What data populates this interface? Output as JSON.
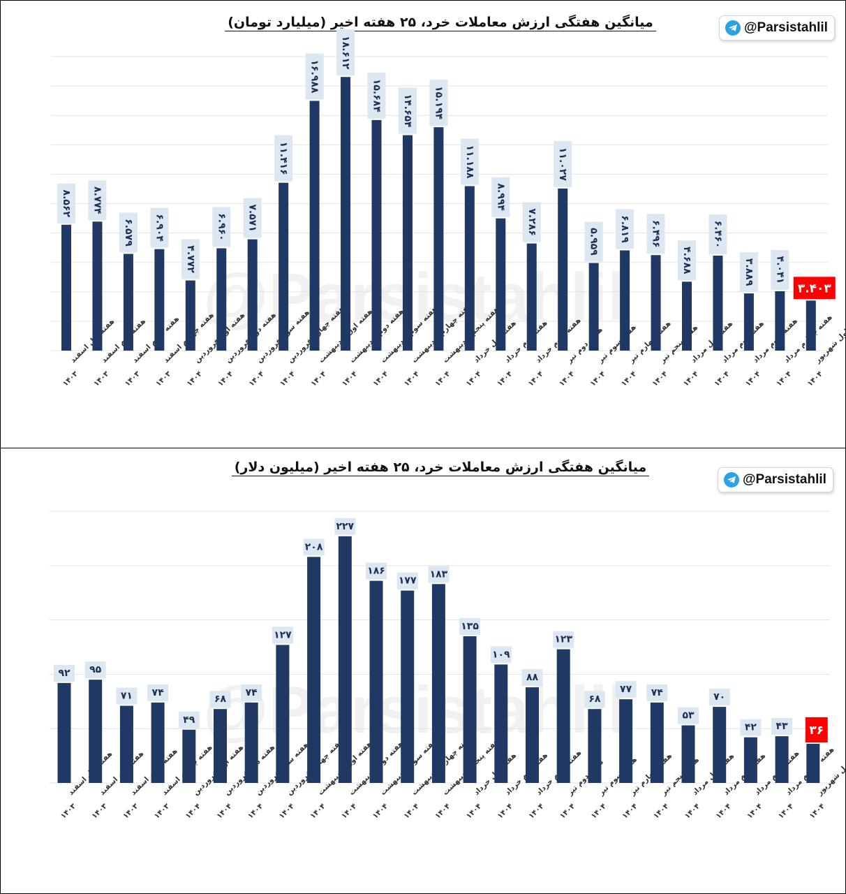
{
  "chart_data": [
    {
      "type": "bar",
      "title": "میانگین هفتگی ارزش معاملات خرد، ۲۵ هفته اخیر (میلیارد تومان)",
      "watermark": "@Parsistahlil",
      "badge": "@Parsistahlil",
      "grid": true,
      "highlight_color": "#ff0000",
      "bar_color": "#203864",
      "ylim": [
        0,
        20
      ],
      "categories": [
        [
          "هفته اول اسفند",
          "۱۴۰۳"
        ],
        [
          "هفته دوم اسفند",
          "۱۴۰۳"
        ],
        [
          "هفته سوم اسفند",
          "۱۴۰۳"
        ],
        [
          "هفته چهارم اسفند",
          "۱۴۰۳"
        ],
        [
          "هفته اول فروردین",
          "۱۴۰۴"
        ],
        [
          "هفته دوم فروردین",
          "۱۴۰۴"
        ],
        [
          "هفته سوم فروردین",
          "۱۴۰۴"
        ],
        [
          "هفته چهارم فروردین",
          "۱۴۰۴"
        ],
        [
          "هفته اول اردیبهشت",
          "۱۴۰۴"
        ],
        [
          "هفته دوم اردیبهشت",
          "۱۴۰۴"
        ],
        [
          "هفته سوم اردیبهشت",
          "۱۴۰۴"
        ],
        [
          "هفته چهارم اردیبهشت",
          "۱۴۰۴"
        ],
        [
          "هفته پنجم اردیبهشت",
          "۱۴۰۴"
        ],
        [
          "هفته اول خرداد",
          "۱۴۰۴"
        ],
        [
          "هفته دوم خرداد",
          "۱۴۰۴"
        ],
        [
          "هفته سوم خرداد",
          "۱۴۰۴"
        ],
        [
          "هفته دوم تیر",
          "۱۴۰۴"
        ],
        [
          "هفته سوم تیر",
          "۱۴۰۴"
        ],
        [
          "هفته چهارم تیر",
          "۱۴۰۴"
        ],
        [
          "هفته پنجم تیر",
          "۱۴۰۴"
        ],
        [
          "هفته اول مرداد",
          "۱۴۰۴"
        ],
        [
          "هفته دوم مرداد",
          "۱۴۰۴"
        ],
        [
          "هفته سوم مرداد",
          "۱۴۰۴"
        ],
        [
          "هفته چهارم مرداد",
          "۱۴۰۴"
        ],
        [
          "هفته اول شهریور",
          "۱۴۰۴"
        ]
      ],
      "values": [
        8.562,
        8.774,
        6.579,
        6.904,
        4.772,
        6.96,
        7.571,
        11.416,
        16.988,
        18.612,
        15.684,
        14.654,
        15.194,
        11.188,
        8.994,
        7.286,
        11.027,
        5.959,
        6.819,
        6.496,
        4.688,
        6.46,
        3.889,
        4.041,
        3.403
      ],
      "labels": [
        "۸.۵۶۲",
        "۸.۷۷۴",
        "۶.۵۷۹",
        "۶.۹۰۴",
        "۴.۷۷۲",
        "۶.۹۶۰",
        "۷.۵۷۱",
        "۱۱.۴۱۶",
        "۱۶.۹۸۸",
        "۱۸.۶۱۲",
        "۱۵.۶۸۴",
        "۱۴.۶۵۴",
        "۱۵.۱۹۴",
        "۱۱.۱۸۸",
        "۸.۹۹۴",
        "۷.۲۸۶",
        "۱۱.۰۲۷",
        "۵.۹۵۹",
        "۶.۸۱۹",
        "۶.۴۹۶",
        "۴.۶۸۸",
        "۶.۴۶۰",
        "۳.۸۸۹",
        "۴.۰۴۱",
        "۳.۴۰۳"
      ]
    },
    {
      "type": "bar",
      "title": "میانگین هفتگی ارزش معاملات خرد، ۲۵ هفته اخیر (میلیون دلار)",
      "watermark": "@Parsistahlil",
      "badge": "@Parsistahlil",
      "grid": true,
      "highlight_color": "#ff0000",
      "bar_color": "#203864",
      "ylim": [
        0,
        250
      ],
      "categories": [
        [
          "هفته اول اسفند",
          "۱۴۰۳"
        ],
        [
          "هفته دوم اسفند",
          "۱۴۰۳"
        ],
        [
          "هفته سوم اسفند",
          "۱۴۰۳"
        ],
        [
          "هفته چهارم اسفند",
          "۱۴۰۳"
        ],
        [
          "هفته اول فروردین",
          "۱۴۰۴"
        ],
        [
          "هفته دوم فروردین",
          "۱۴۰۴"
        ],
        [
          "هفته سوم فروردین",
          "۱۴۰۴"
        ],
        [
          "هفته چهارم فروردین",
          "۱۴۰۴"
        ],
        [
          "هفته اول اردیبهشت",
          "۱۴۰۴"
        ],
        [
          "هفته دوم اردیبهشت",
          "۱۴۰۴"
        ],
        [
          "هفته سوم اردیبهشت",
          "۱۴۰۴"
        ],
        [
          "هفته چهارم اردیبهشت",
          "۱۴۰۴"
        ],
        [
          "هفته پنجم اردیبهشت",
          "۱۴۰۴"
        ],
        [
          "هفته اول خرداد",
          "۱۴۰۴"
        ],
        [
          "هفته دوم خرداد",
          "۱۴۰۴"
        ],
        [
          "هفته سوم خرداد",
          "۱۴۰۴"
        ],
        [
          "هفته دوم تیر",
          "۱۴۰۴"
        ],
        [
          "هفته سوم تیر",
          "۱۴۰۴"
        ],
        [
          "هفته چهارم تیر",
          "۱۴۰۴"
        ],
        [
          "هفته پنجم تیر",
          "۱۴۰۴"
        ],
        [
          "هفته اول مرداد",
          "۱۴۰۴"
        ],
        [
          "هفته دوم مرداد",
          "۱۴۰۴"
        ],
        [
          "هفته سوم مرداد",
          "۱۴۰۴"
        ],
        [
          "هفته چهارم مرداد",
          "۱۴۰۴"
        ],
        [
          "هفته اول شهریور",
          "۱۴۰۴"
        ]
      ],
      "values": [
        92,
        95,
        71,
        74,
        49,
        68,
        74,
        127,
        208,
        227,
        186,
        177,
        183,
        135,
        109,
        88,
        123,
        68,
        77,
        74,
        53,
        70,
        42,
        43,
        36
      ],
      "labels": [
        "۹۲",
        "۹۵",
        "۷۱",
        "۷۴",
        "۴۹",
        "۶۸",
        "۷۴",
        "۱۲۷",
        "۲۰۸",
        "۲۲۷",
        "۱۸۶",
        "۱۷۷",
        "۱۸۳",
        "۱۳۵",
        "۱۰۹",
        "۸۸",
        "۱۲۳",
        "۶۸",
        "۷۷",
        "۷۴",
        "۵۳",
        "۷۰",
        "۴۲",
        "۴۳",
        "۳۶"
      ]
    }
  ]
}
